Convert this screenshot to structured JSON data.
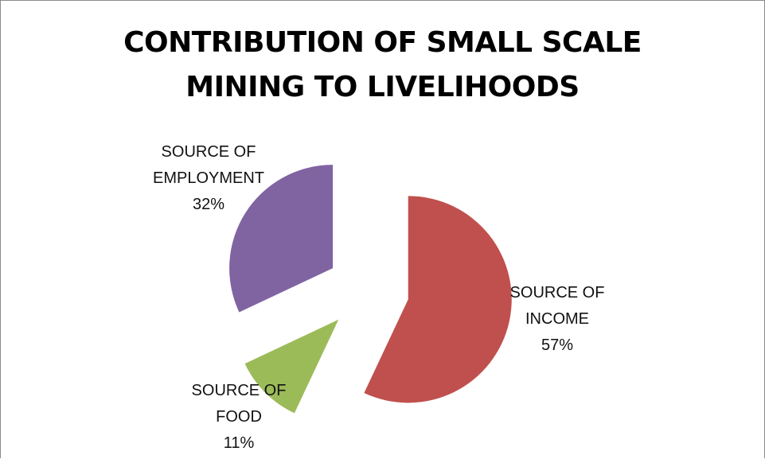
{
  "chart_data": {
    "type": "pie",
    "title": [
      "CONTRIBUTION OF SMALL SCALE",
      "MINING TO LIVELIHOODS"
    ],
    "exploded": true,
    "start_angle_deg": 0,
    "direction": "clockwise",
    "slices": [
      {
        "label_lines": [
          "SOURCE OF",
          "INCOME"
        ],
        "pct_label": "57%",
        "value": 57,
        "color": "#C0504D"
      },
      {
        "label_lines": [
          "SOURCE OF",
          "FOOD"
        ],
        "pct_label": "11%",
        "value": 11,
        "color": "#9BBB59"
      },
      {
        "label_lines": [
          "SOURCE OF",
          "EMPLOYMENT"
        ],
        "pct_label": "32%",
        "value": 32,
        "color": "#8064A2"
      }
    ]
  }
}
